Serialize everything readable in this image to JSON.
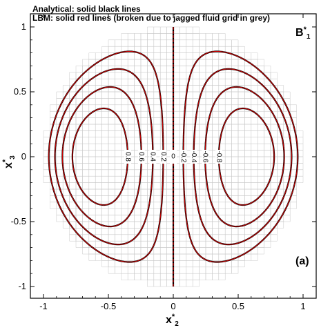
{
  "chart_data": {
    "type": "contour",
    "legend": {
      "line1": "Analytical: solid black lines",
      "line2": "LBM: solid red lines (broken due to jagged fluid grid in grey)"
    },
    "variable_label": {
      "main": "B",
      "sup": "*",
      "sub": "1"
    },
    "panel_label": "(a)",
    "xlabel": {
      "main": "x",
      "sup": "*",
      "sub": "2"
    },
    "ylabel": {
      "main": "x",
      "sup": "*",
      "sub": "3"
    },
    "xlim": [
      -1.0,
      1.0
    ],
    "ylim": [
      -1.0,
      1.0
    ],
    "x_ticks": [
      {
        "value": -1,
        "label": "-1"
      },
      {
        "value": -0.5,
        "label": "-0.5"
      },
      {
        "value": 0,
        "label": "0"
      },
      {
        "value": 0.5,
        "label": "0.5"
      },
      {
        "value": 1,
        "label": "1"
      }
    ],
    "y_ticks": [
      {
        "value": -1,
        "label": "-1"
      },
      {
        "value": -0.5,
        "label": "-0.5"
      },
      {
        "value": 0,
        "label": "0"
      },
      {
        "value": 0.5,
        "label": "0.5"
      },
      {
        "value": 1,
        "label": "1"
      }
    ],
    "contour_levels": [
      {
        "level": 0.8,
        "label": "0.8"
      },
      {
        "level": 0.6,
        "label": "0.6"
      },
      {
        "level": 0.4,
        "label": "0.4"
      },
      {
        "level": 0.2,
        "label": "0.2"
      },
      {
        "level": 0,
        "label": "0"
      },
      {
        "level": -0.2,
        "label": "-0.2"
      },
      {
        "level": -0.4,
        "label": "-0.4"
      },
      {
        "level": -0.6,
        "label": "-0.6"
      },
      {
        "level": -0.8,
        "label": "-0.8"
      }
    ],
    "series": [
      {
        "name": "Analytical",
        "color": "#000000"
      },
      {
        "name": "LBM",
        "color": "#cc0000"
      }
    ],
    "grid_color": "#c8c8c8"
  }
}
